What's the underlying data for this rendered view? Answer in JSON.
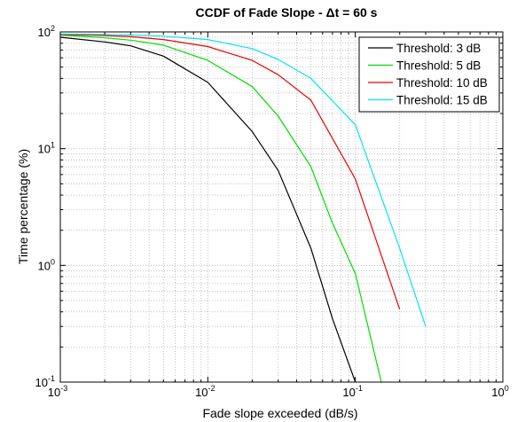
{
  "chart_data": {
    "type": "line",
    "title": "CCDF of Fade Slope - Δt = 60 s",
    "xlabel": "Fade slope exceeded (dB/s)",
    "ylabel": "Time percentage (%)",
    "xscale": "log",
    "yscale": "log",
    "xlim": [
      0.001,
      1
    ],
    "ylim": [
      0.1,
      100
    ],
    "grid": true,
    "legend_position": "top-right",
    "x_ticks": [
      {
        "base": "10",
        "exp": "-3",
        "value": 0.001
      },
      {
        "base": "10",
        "exp": "-2",
        "value": 0.01
      },
      {
        "base": "10",
        "exp": "-1",
        "value": 0.1
      },
      {
        "base": "10",
        "exp": "0",
        "value": 1
      }
    ],
    "y_ticks": [
      {
        "base": "10",
        "exp": "-1",
        "value": 0.1
      },
      {
        "base": "10",
        "exp": "0",
        "value": 1
      },
      {
        "base": "10",
        "exp": "1",
        "value": 10
      },
      {
        "base": "10",
        "exp": "2",
        "value": 100
      }
    ],
    "series": [
      {
        "name": "Threshold: 3 dB",
        "color": "#000000",
        "x": [
          0.001,
          0.002,
          0.003,
          0.005,
          0.01,
          0.02,
          0.03,
          0.05,
          0.07,
          0.1
        ],
        "y": [
          90,
          82,
          76,
          62,
          37,
          14,
          6.5,
          1.4,
          0.35,
          0.1
        ]
      },
      {
        "name": "Threshold: 5 dB",
        "color": "#00dd00",
        "x": [
          0.001,
          0.002,
          0.003,
          0.005,
          0.01,
          0.02,
          0.03,
          0.05,
          0.07,
          0.1,
          0.15
        ],
        "y": [
          94,
          89,
          85,
          77,
          57,
          34,
          19,
          7,
          2.3,
          0.85,
          0.1
        ]
      },
      {
        "name": "Threshold: 10 dB",
        "color": "#ee0000",
        "x": [
          0.001,
          0.002,
          0.003,
          0.005,
          0.01,
          0.02,
          0.03,
          0.05,
          0.1,
          0.2
        ],
        "y": [
          95,
          93,
          91,
          86,
          75,
          57,
          43,
          26,
          5.5,
          0.42
        ]
      },
      {
        "name": "Threshold: 15 dB",
        "color": "#00e5ee",
        "x": [
          0.001,
          0.002,
          0.003,
          0.005,
          0.01,
          0.02,
          0.03,
          0.05,
          0.1,
          0.2,
          0.3
        ],
        "y": [
          96,
          95,
          94,
          92,
          86,
          72,
          58,
          40,
          16,
          1.4,
          0.3
        ]
      }
    ]
  }
}
